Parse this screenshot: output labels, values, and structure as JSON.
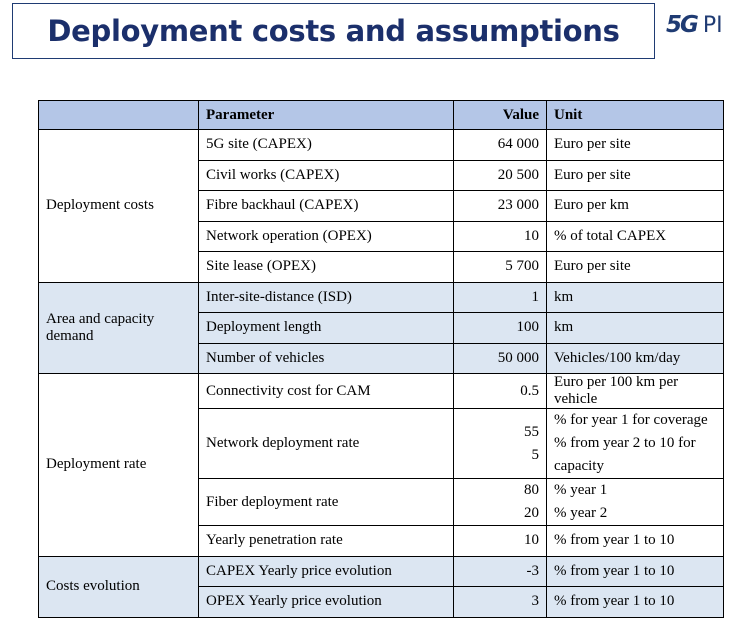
{
  "title": "Deployment costs and assumptions",
  "logo": {
    "mark": "5G",
    "text": "PI"
  },
  "table": {
    "headers": {
      "group": "",
      "parameter": "Parameter",
      "value": "Value",
      "unit": "Unit"
    },
    "groups": {
      "deployment_costs": {
        "label": "Deployment costs",
        "rows": [
          {
            "parameter": "5G site (CAPEX)",
            "value": "64 000",
            "unit": "Euro per site"
          },
          {
            "parameter": "Civil works (CAPEX)",
            "value": "20 500",
            "unit": "Euro per site"
          },
          {
            "parameter": "Fibre backhaul (CAPEX)",
            "value": "23 000",
            "unit": "Euro per km"
          },
          {
            "parameter": "Network operation (OPEX)",
            "value": "10",
            "unit": "% of total CAPEX"
          },
          {
            "parameter": "Site lease (OPEX)",
            "value": "5 700",
            "unit": "Euro per site"
          }
        ]
      },
      "area_capacity": {
        "label": "Area and capacity demand",
        "rows": [
          {
            "parameter": "Inter-site-distance (ISD)",
            "value": "1",
            "unit": "km"
          },
          {
            "parameter": "Deployment length",
            "value": "100",
            "unit": "km"
          },
          {
            "parameter": "Number of vehicles",
            "value": "50 000",
            "unit": "Vehicles/100 km/day"
          }
        ]
      },
      "deployment_rate": {
        "label": "Deployment rate",
        "rows": [
          {
            "parameter": "Connectivity cost for CAM",
            "value": "0.5",
            "unit": "Euro per 100 km per vehicle"
          },
          {
            "parameter": "Network deployment rate",
            "value1": "55",
            "unit1": "% for year 1 for coverage",
            "value2": "5",
            "unit2": "% from year 2 to 10 for capacity"
          },
          {
            "parameter": "Fiber deployment rate",
            "value1": "80",
            "unit1": "% year 1",
            "value2": "20",
            "unit2": "% year 2"
          },
          {
            "parameter": "Yearly penetration rate",
            "value": "10",
            "unit": "% from year 1 to 10"
          }
        ]
      },
      "costs_evolution": {
        "label": "Costs evolution",
        "rows": [
          {
            "parameter": "CAPEX Yearly price evolution",
            "value": "-3",
            "unit": "% from year 1 to 10"
          },
          {
            "parameter": "OPEX Yearly price evolution",
            "value": "3",
            "unit": "% from year 1 to 10"
          }
        ]
      }
    }
  }
}
